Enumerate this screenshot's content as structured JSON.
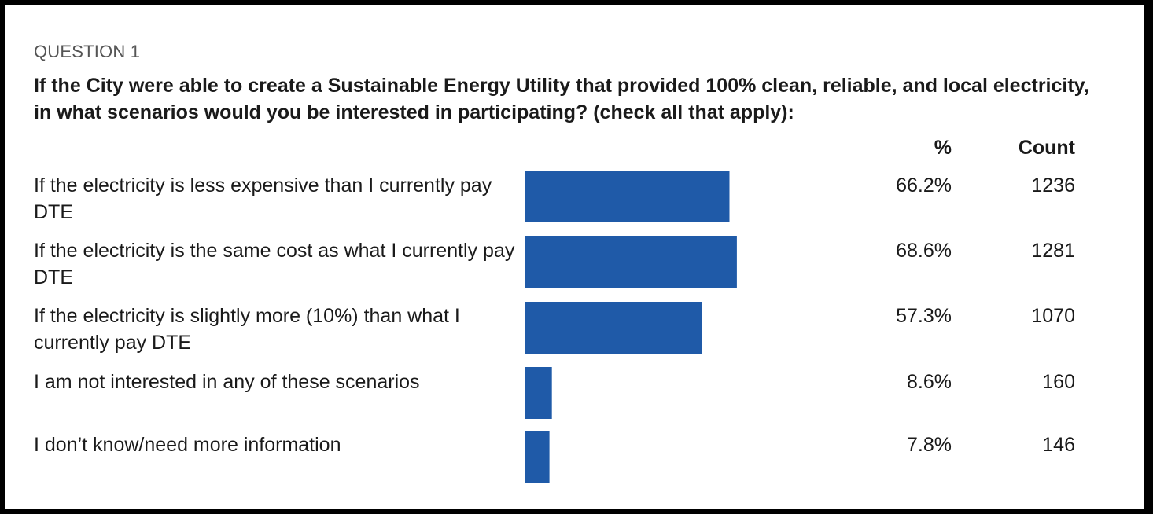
{
  "question_number": "QUESTION 1",
  "question_text": "If the City were able to create a Sustainable Energy Utility that provided 100% clean, reliable, and local electricity, in what scenarios would you be interested in participating? (check all that apply):",
  "columns": {
    "percent": "%",
    "count": "Count"
  },
  "colors": {
    "bar": "#1f5aa8"
  },
  "chart_data": {
    "type": "bar",
    "orientation": "horizontal",
    "categories": [
      "If the electricity is less expensive than I currently pay DTE",
      "If the electricity is the same cost as what I currently pay DTE",
      "If the electricity is slightly more (10%) than what I currently pay DTE",
      "I am not interested in any of these scenarios",
      "I don’t know/need more information"
    ],
    "values": [
      66.2,
      68.6,
      57.3,
      8.6,
      7.8
    ],
    "percent_labels": [
      "66.2%",
      "68.6%",
      "57.3%",
      "8.6%",
      "7.8%"
    ],
    "counts": [
      "1236",
      "1281",
      "1070",
      "160",
      "146"
    ],
    "xlim": [
      0,
      100
    ],
    "grid": false,
    "legend": "none"
  }
}
